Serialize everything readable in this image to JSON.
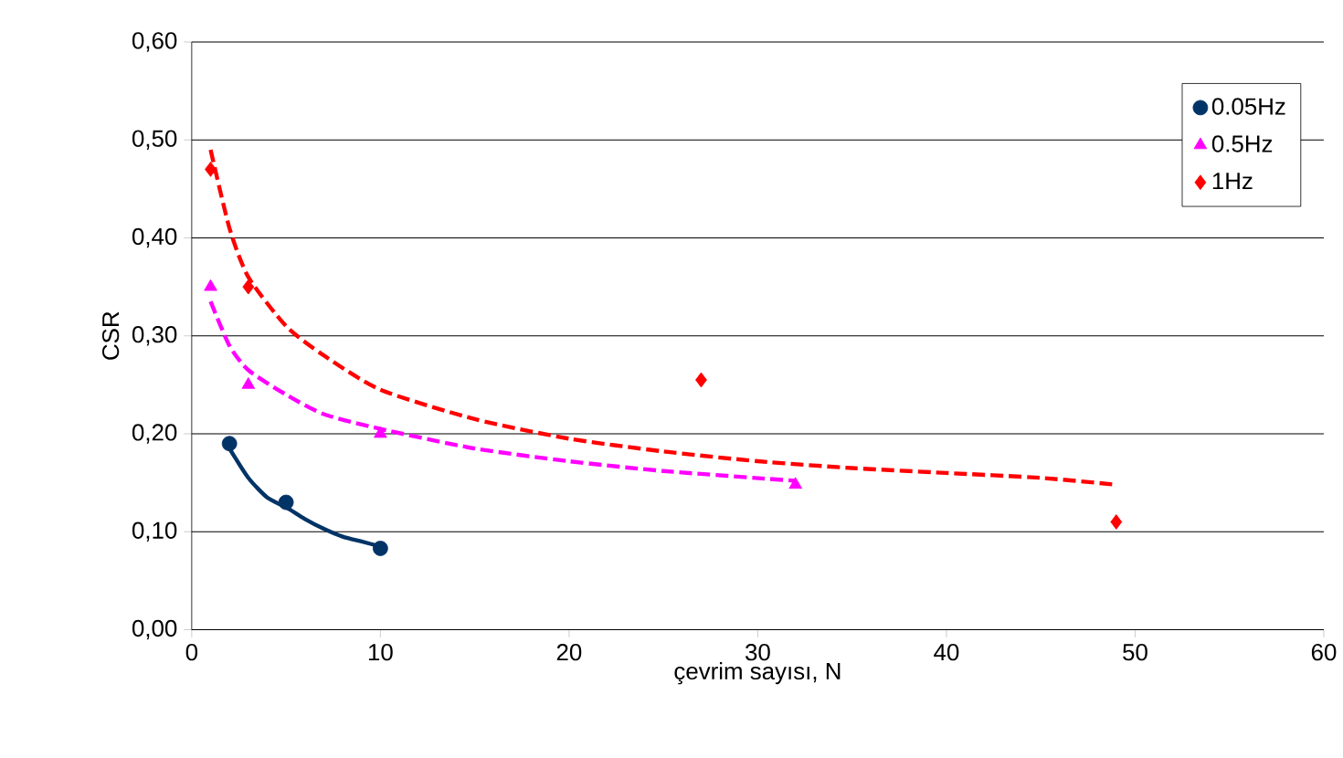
{
  "chart_data": {
    "type": "scatter",
    "xlabel": "çevrim sayısı, N",
    "ylabel": "CSR",
    "xlim": [
      0,
      60
    ],
    "xticks": [
      0,
      10,
      20,
      30,
      40,
      50,
      60
    ],
    "ylim": [
      0,
      0.6
    ],
    "yticks": [
      {
        "value": 0,
        "label": "0,00"
      },
      {
        "value": 0.1,
        "label": "0,10"
      },
      {
        "value": 0.2,
        "label": "0,20"
      },
      {
        "value": 0.3,
        "label": "0,30"
      },
      {
        "value": 0.4,
        "label": "0,40"
      },
      {
        "value": 0.5,
        "label": "0,50"
      },
      {
        "value": 0.6,
        "label": "0,60"
      }
    ],
    "grid": "y",
    "legend": "top right",
    "series": [
      {
        "name": "0.05Hz",
        "color": "#003366",
        "marker": "circle",
        "x": [
          2,
          5,
          10
        ],
        "values": [
          0.19,
          0.13,
          0.083
        ]
      },
      {
        "name": "0.5Hz",
        "color": "#ff00ff",
        "marker": "triangle",
        "x": [
          1,
          3,
          10,
          32
        ],
        "values": [
          0.35,
          0.25,
          0.2,
          0.148
        ]
      },
      {
        "name": "1Hz",
        "color": "#ff0000",
        "marker": "diamond",
        "x": [
          1,
          3,
          27,
          49
        ],
        "values": [
          0.47,
          0.35,
          0.255,
          0.11
        ]
      },
      {
        "type": "line",
        "color": "#003366",
        "marker": "none",
        "line_style": "solid",
        "x": [
          2,
          3,
          4,
          5,
          6,
          7,
          8,
          9,
          10
        ],
        "values": [
          0.185,
          0.155,
          0.135,
          0.125,
          0.113,
          0.103,
          0.095,
          0.09,
          0.085
        ]
      },
      {
        "type": "line",
        "color": "#ff00ff",
        "marker": "none",
        "line_style": "dashed",
        "x": [
          1,
          2,
          3,
          5,
          7,
          10,
          15,
          20,
          25,
          32
        ],
        "values": [
          0.335,
          0.29,
          0.265,
          0.24,
          0.22,
          0.205,
          0.185,
          0.172,
          0.162,
          0.152
        ]
      },
      {
        "type": "line",
        "color": "#ff0000",
        "marker": "none",
        "line_style": "dashed",
        "x": [
          1,
          2,
          3,
          5,
          7,
          10,
          15,
          20,
          25,
          30,
          35,
          40,
          45,
          49
        ],
        "values": [
          0.49,
          0.41,
          0.36,
          0.31,
          0.28,
          0.245,
          0.215,
          0.195,
          0.182,
          0.172,
          0.165,
          0.16,
          0.155,
          0.148
        ]
      }
    ]
  }
}
